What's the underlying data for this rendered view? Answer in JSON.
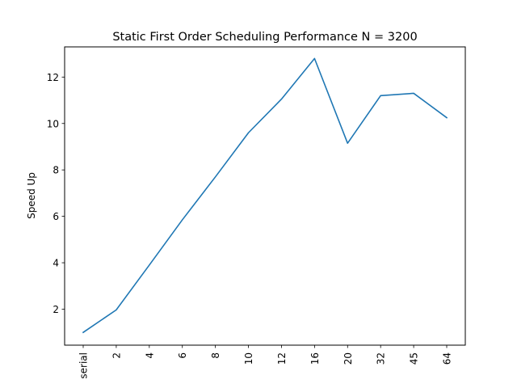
{
  "chart_data": {
    "type": "line",
    "title": "Static First Order Scheduling Performance N = 3200",
    "xlabel": "",
    "ylabel": "Speed Up",
    "categories": [
      "serial",
      "2",
      "4",
      "6",
      "8",
      "10",
      "12",
      "16",
      "20",
      "32",
      "45",
      "64"
    ],
    "series": [
      {
        "values": [
          1.0,
          1.97,
          3.9,
          5.85,
          7.7,
          9.6,
          11.05,
          12.8,
          9.15,
          11.2,
          11.3,
          10.25
        ],
        "color": "#1f77b4"
      }
    ],
    "ylim": [
      0.45,
      13.3
    ],
    "yticks": [
      2,
      4,
      6,
      8,
      10,
      12
    ],
    "grid": false,
    "legend": "none"
  }
}
